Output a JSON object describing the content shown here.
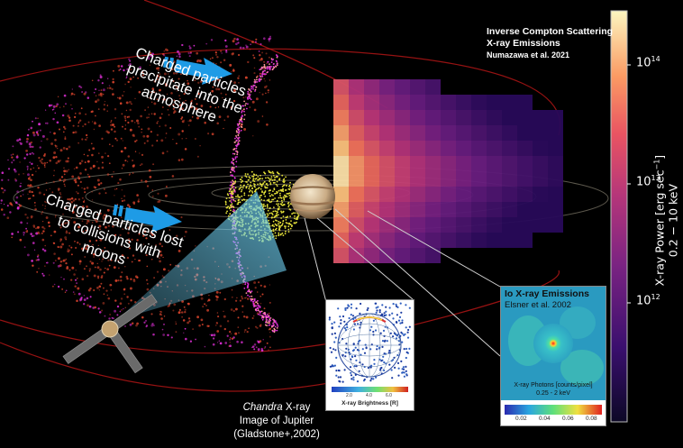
{
  "labels": {
    "charged_precipitate": "Charged particles precipitate into the atmosphere",
    "charged_lost": "Charged particles lost to collisions with moons",
    "icsc_title": "Inverse Compton Scattering",
    "icsc_sub": "X-ray Emissions",
    "icsc_ref": "Numazawa et al. 2021",
    "io_title": "Io X-ray Emissions",
    "io_ref": "Elsner et al. 2002",
    "io_photons": "X-ray Photons [counts/pixel]",
    "io_band": "0.25 - 2 keV",
    "chandra_italic": "Chandra",
    "chandra_rest": " X-ray",
    "chandra_line2": "Image of Jupiter",
    "chandra_line3": "(Gladstone+,2002)",
    "brightness_label": "X-ray Brightness [R]"
  },
  "colorbar": {
    "label_line1": "X-ray Power [erg sec",
    "label_sup": "−1",
    "label_close": "]",
    "label_line2": "0.2 − 10 keV",
    "ticks": [
      {
        "base": "10",
        "exp": "14"
      },
      {
        "base": "10",
        "exp": "13"
      },
      {
        "base": "10",
        "exp": "12"
      }
    ]
  },
  "io_ticks": [
    "0.02",
    "0.04",
    "0.06",
    "0.08"
  ],
  "chandra_ticks": [
    "2.0",
    "4.0",
    "6.0"
  ],
  "colors": {
    "arrow": "#1e9be6",
    "magma_dark": "#3b0f6f",
    "magma_mid": "#c73d73",
    "magma_bright": "#fcf0b4",
    "particles_red": "#d8442c",
    "particles_magenta": "#e02fd8",
    "particles_yellow": "#e6e33a",
    "beam": "#7fd4f0"
  }
}
